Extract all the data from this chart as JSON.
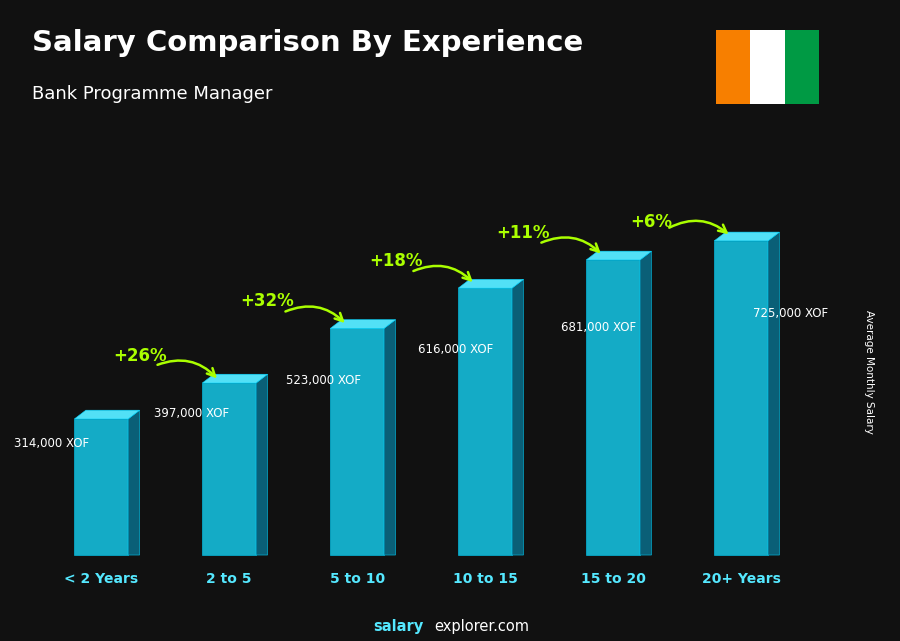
{
  "title": "Salary Comparison By Experience",
  "subtitle": "Bank Programme Manager",
  "categories": [
    "< 2 Years",
    "2 to 5",
    "5 to 10",
    "10 to 15",
    "15 to 20",
    "20+ Years"
  ],
  "values": [
    314000,
    397000,
    523000,
    616000,
    681000,
    725000
  ],
  "labels": [
    "314,000 XOF",
    "397,000 XOF",
    "523,000 XOF",
    "616,000 XOF",
    "681,000 XOF",
    "725,000 XOF"
  ],
  "pct_changes": [
    "+26%",
    "+32%",
    "+18%",
    "+11%",
    "+6%"
  ],
  "bar_front": "#15b8d5",
  "bar_side": "#0a6680",
  "bar_top": "#55e8ff",
  "ylabel": "Average Monthly Salary",
  "footer_bold": "salary",
  "footer_normal": "explorer.com",
  "pct_color": "#aaff00",
  "text_color": "#ffffff",
  "flag_orange": "#F77F00",
  "flag_white": "#FFFFFF",
  "flag_green": "#009A44"
}
